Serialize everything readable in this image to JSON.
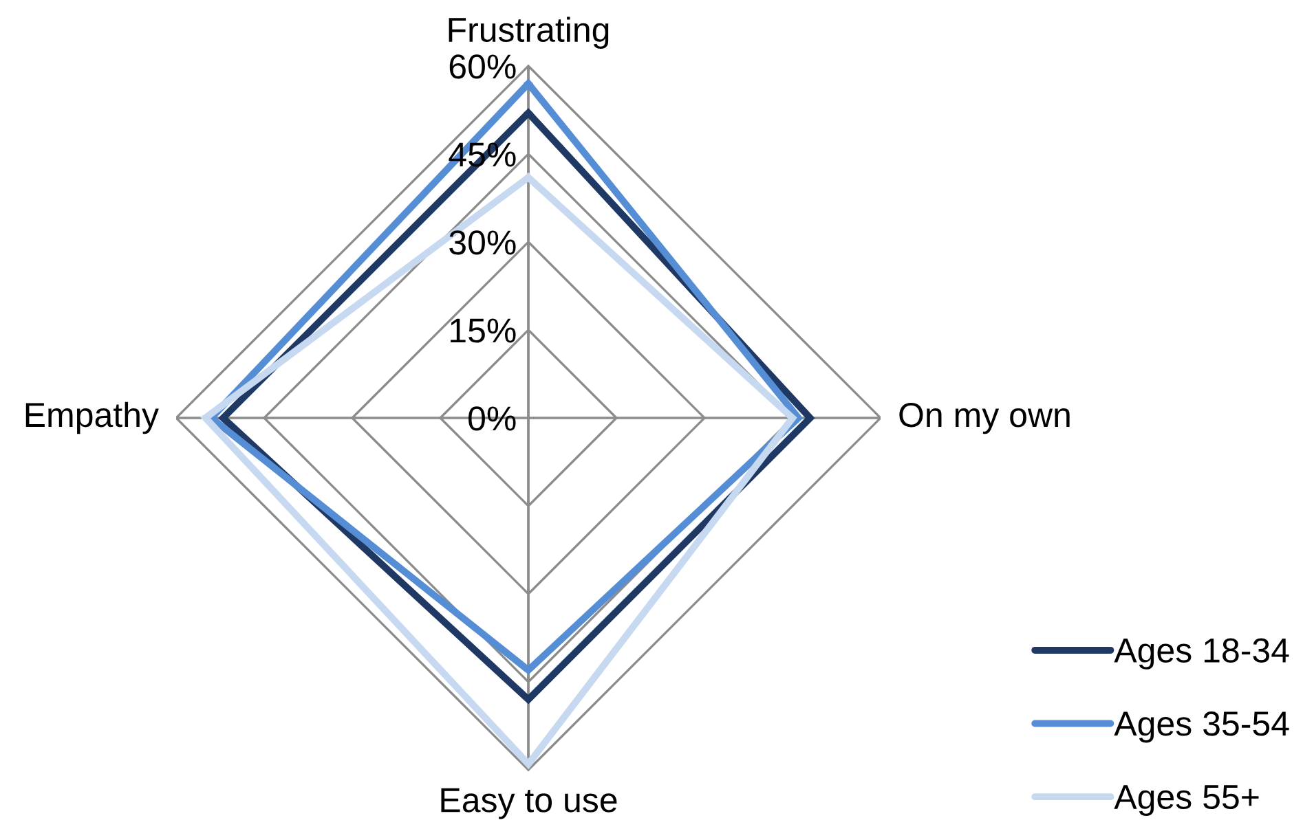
{
  "chart_data": {
    "type": "radar",
    "categories": [
      "Frustrating",
      "On my own",
      "Easy to use",
      "Empathy"
    ],
    "series": [
      {
        "name": "Ages 18-34",
        "color": "#1f3864",
        "values": [
          52,
          48,
          48,
          52
        ]
      },
      {
        "name": "Ages 35-54",
        "color": "#558ed5",
        "values": [
          57,
          46,
          43,
          54
        ]
      },
      {
        "name": "Ages 55+",
        "color": "#c6d9f1",
        "values": [
          41,
          45,
          59,
          55
        ]
      }
    ],
    "ylim": [
      0,
      60
    ],
    "yticks": [
      {
        "value": 0,
        "label": "0%"
      },
      {
        "value": 15,
        "label": "15%"
      },
      {
        "value": 30,
        "label": "30%"
      },
      {
        "value": 45,
        "label": "45%"
      },
      {
        "value": 60,
        "label": "60%"
      }
    ],
    "grid": true,
    "legend": "bottom right",
    "marker": "none",
    "line_style": "solid"
  }
}
